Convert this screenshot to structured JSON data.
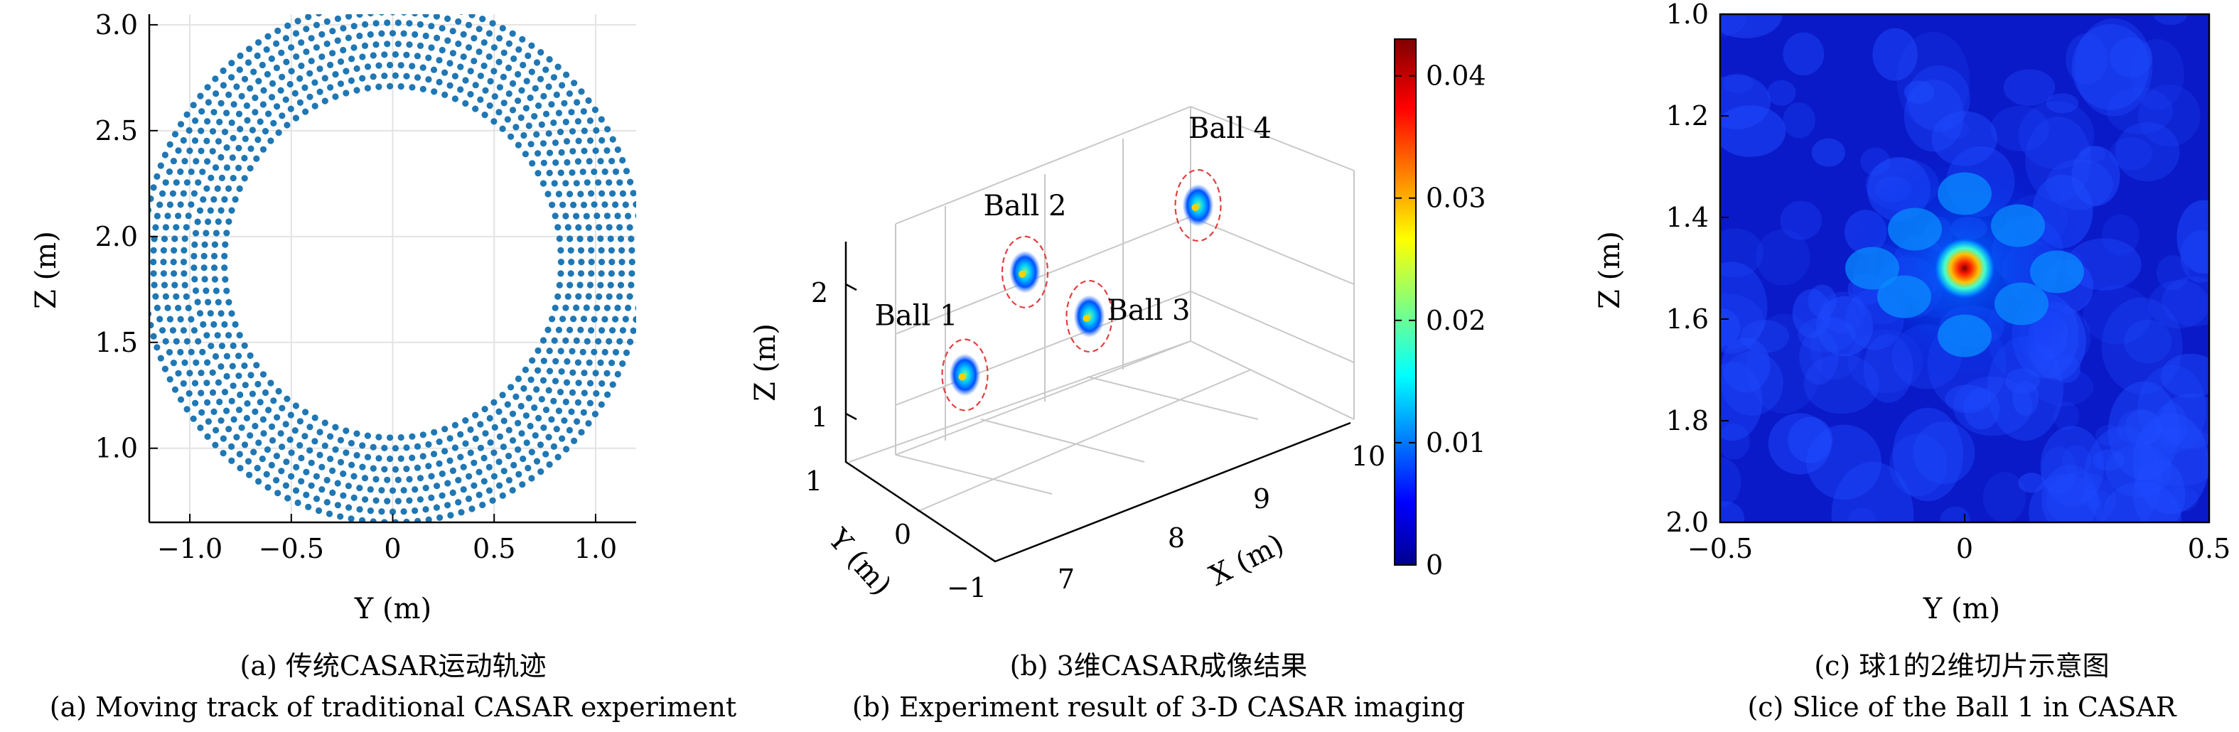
{
  "chart_data": [
    {
      "type": "scatter",
      "xlabel": "Y (m)",
      "ylabel": "Z (m)",
      "xlim": [
        -1.2,
        1.2
      ],
      "ylim": [
        0.65,
        3.05
      ],
      "grid": true,
      "xticks": [
        "−1.0",
        "−0.5",
        "0",
        "0.5",
        "1.0"
      ],
      "yticks": [
        "1.0",
        "1.5",
        "2.0",
        "2.5",
        "3.0"
      ],
      "marker_color": "#1f77b4",
      "series": [
        {
          "center_y": 0,
          "center_z": 1.88,
          "radii": [
            0.83,
            0.88,
            0.93,
            0.98,
            1.03,
            1.08,
            1.13,
            1.18,
            1.23
          ]
        }
      ],
      "caption_cn": "(a) 传统CASAR运动轨迹",
      "caption_en": "(a) Moving track of traditional CASAR experiment"
    },
    {
      "type": "scatter",
      "xlabel": "X (m)",
      "ylabel": "Y (m)",
      "zlabel": "Z (m)",
      "xticks": [
        "7",
        "8",
        "9",
        "10"
      ],
      "yticks": [
        "−1",
        "0",
        "1"
      ],
      "zticks": [
        "1",
        "2"
      ],
      "grid": true,
      "points": [
        {
          "label": "Ball 1",
          "x": 7.0,
          "y": 0.0,
          "z": 1.3
        },
        {
          "label": "Ball 2",
          "x": 7.3,
          "y": 0.4,
          "z": 1.95
        },
        {
          "label": "Ball 3",
          "x": 8.0,
          "y": 0.0,
          "z": 1.6
        },
        {
          "label": "Ball 4",
          "x": 8.6,
          "y": 0.6,
          "z": 2.2
        }
      ],
      "colorbar": {
        "ticks": [
          "0",
          "0.01",
          "0.02",
          "0.03",
          "0.04"
        ],
        "range": [
          0,
          0.043
        ],
        "colormap": "jet"
      },
      "caption_cn": "(b) 3维CASAR成像结果",
      "caption_en": "(b) Experiment result of 3-D CASAR imaging"
    },
    {
      "type": "heatmap",
      "xlabel": "Y (m)",
      "ylabel": "Z (m)",
      "xlim": [
        -0.5,
        0.5
      ],
      "ylim": [
        1.0,
        2.0
      ],
      "xticks": [
        "−0.5",
        "0",
        "0.5"
      ],
      "yticks": [
        "1.0",
        "1.2",
        "1.4",
        "1.6",
        "1.8",
        "2.0"
      ],
      "peak": {
        "y": 0.0,
        "z": 1.5
      },
      "colormap": "jet",
      "caption_cn": "(c) 球1的2维切片示意图",
      "caption_en": "(c) Slice of the Ball 1 in CASAR"
    }
  ]
}
